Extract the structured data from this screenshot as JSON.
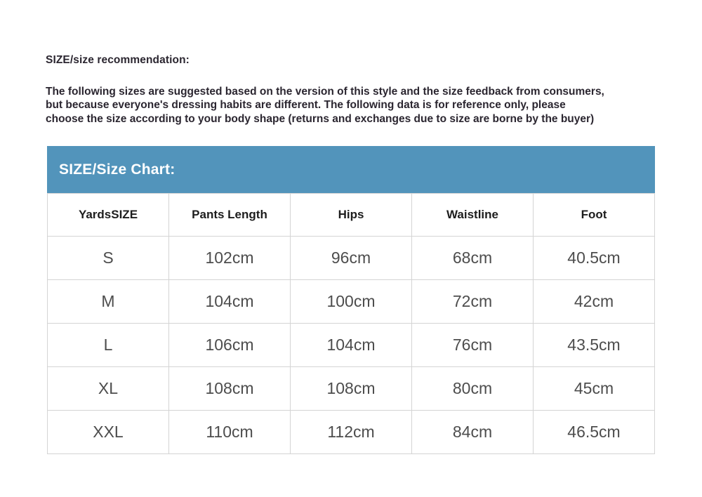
{
  "page": {
    "heading": "SIZE/size recommendation:",
    "paragraph_lines": [
      "The following sizes are suggested based on the version of this style and the size feedback from consumers,",
      "but because everyone's dressing habits are different. The following data is for reference only, please",
      "choose the size according to your body shape (returns and exchanges due to size are borne by the buyer)"
    ]
  },
  "colors": {
    "accent_blue": "#5294bb",
    "table_border": "#d4d4d4",
    "body_text": "#2b2630",
    "cell_text": "#4d4d4d"
  },
  "chart_data": {
    "type": "table",
    "title": "SIZE/Size Chart:",
    "columns": [
      "YardsSIZE",
      "Pants Length",
      "Hips",
      "Waistline",
      "Foot"
    ],
    "rows": [
      [
        "S",
        "102cm",
        "96cm",
        "68cm",
        "40.5cm"
      ],
      [
        "M",
        "104cm",
        "100cm",
        "72cm",
        "42cm"
      ],
      [
        "L",
        "106cm",
        "104cm",
        "76cm",
        "43.5cm"
      ],
      [
        "XL",
        "108cm",
        "108cm",
        "80cm",
        "45cm"
      ],
      [
        "XXL",
        "110cm",
        "112cm",
        "84cm",
        "46.5cm"
      ]
    ]
  }
}
